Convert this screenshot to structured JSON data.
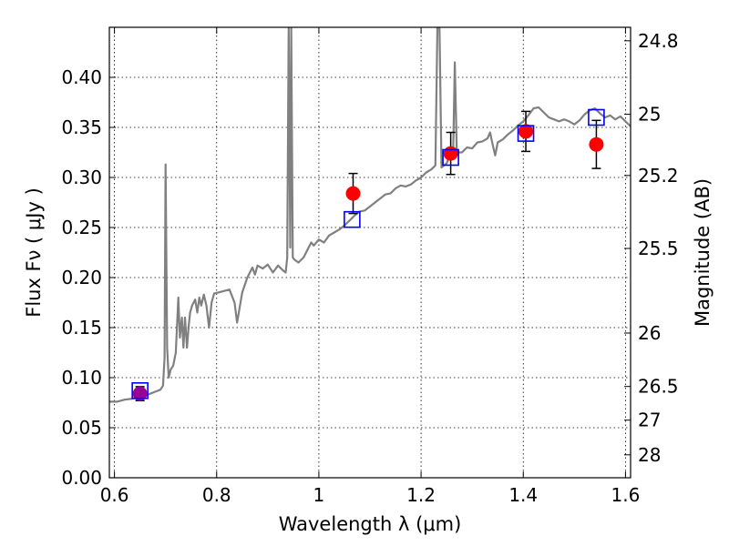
{
  "chart_data": {
    "type": "scatter",
    "xlabel": "Wavelength  λ (μm)",
    "ylabel": "Flux  Fν  ( μJy )",
    "y2label": "Magnitude (AB)",
    "xlim": [
      0.59,
      1.61
    ],
    "ylim": [
      0.0,
      0.45
    ],
    "grid": true,
    "x_ticks": [
      {
        "value": 0.6,
        "label": "0.6"
      },
      {
        "value": 0.8,
        "label": "0.8"
      },
      {
        "value": 1.0,
        "label": "1"
      },
      {
        "value": 1.2,
        "label": "1.2"
      },
      {
        "value": 1.4,
        "label": "1.4"
      },
      {
        "value": 1.6,
        "label": "1.6"
      }
    ],
    "y_ticks": [
      {
        "value": 0.0,
        "label": "0.00"
      },
      {
        "value": 0.05,
        "label": "0.05"
      },
      {
        "value": 0.1,
        "label": "0.10"
      },
      {
        "value": 0.15,
        "label": "0.15"
      },
      {
        "value": 0.2,
        "label": "0.20"
      },
      {
        "value": 0.25,
        "label": "0.25"
      },
      {
        "value": 0.3,
        "label": "0.30"
      },
      {
        "value": 0.35,
        "label": "0.35"
      },
      {
        "value": 0.4,
        "label": "0.40"
      }
    ],
    "y2_ticks": [
      {
        "value": 24.8,
        "label": "24.8"
      },
      {
        "value": 25.0,
        "label": "25"
      },
      {
        "value": 25.2,
        "label": "25.2"
      },
      {
        "value": 25.5,
        "label": "25.5"
      },
      {
        "value": 26.0,
        "label": "26"
      },
      {
        "value": 26.5,
        "label": "26.5"
      },
      {
        "value": 27.0,
        "label": "27"
      },
      {
        "value": 28.0,
        "label": "28"
      }
    ],
    "model_spectrum": {
      "color": "#808080",
      "points": [
        [
          0.59,
          0.076
        ],
        [
          0.605,
          0.076
        ],
        [
          0.62,
          0.078
        ],
        [
          0.635,
          0.079
        ],
        [
          0.65,
          0.081
        ],
        [
          0.665,
          0.083
        ],
        [
          0.68,
          0.086
        ],
        [
          0.69,
          0.088
        ],
        [
          0.695,
          0.092
        ],
        [
          0.698,
          0.12
        ],
        [
          0.7,
          0.313
        ],
        [
          0.703,
          0.13
        ],
        [
          0.706,
          0.1
        ],
        [
          0.71,
          0.108
        ],
        [
          0.715,
          0.112
        ],
        [
          0.72,
          0.125
        ],
        [
          0.725,
          0.18
        ],
        [
          0.728,
          0.14
        ],
        [
          0.732,
          0.16
        ],
        [
          0.735,
          0.13
        ],
        [
          0.738,
          0.16
        ],
        [
          0.742,
          0.13
        ],
        [
          0.745,
          0.15
        ],
        [
          0.748,
          0.165
        ],
        [
          0.752,
          0.172
        ],
        [
          0.758,
          0.178
        ],
        [
          0.762,
          0.165
        ],
        [
          0.766,
          0.18
        ],
        [
          0.77,
          0.172
        ],
        [
          0.775,
          0.183
        ],
        [
          0.78,
          0.172
        ],
        [
          0.785,
          0.15
        ],
        [
          0.79,
          0.175
        ],
        [
          0.795,
          0.184
        ],
        [
          0.81,
          0.186
        ],
        [
          0.825,
          0.188
        ],
        [
          0.835,
          0.175
        ],
        [
          0.84,
          0.155
        ],
        [
          0.845,
          0.17
        ],
        [
          0.85,
          0.185
        ],
        [
          0.86,
          0.2
        ],
        [
          0.87,
          0.21
        ],
        [
          0.875,
          0.203
        ],
        [
          0.88,
          0.212
        ],
        [
          0.89,
          0.209
        ],
        [
          0.9,
          0.213
        ],
        [
          0.91,
          0.205
        ],
        [
          0.92,
          0.212
        ],
        [
          0.93,
          0.207
        ],
        [
          0.935,
          0.205
        ],
        [
          0.938,
          0.22
        ],
        [
          0.941,
          0.45
        ],
        [
          0.944,
          0.23
        ],
        [
          0.946,
          0.45
        ],
        [
          0.949,
          0.22
        ],
        [
          0.952,
          0.218
        ],
        [
          0.96,
          0.215
        ],
        [
          0.97,
          0.22
        ],
        [
          0.975,
          0.225
        ],
        [
          0.985,
          0.235
        ],
        [
          0.99,
          0.232
        ],
        [
          1.0,
          0.238
        ],
        [
          1.01,
          0.235
        ],
        [
          1.02,
          0.242
        ],
        [
          1.03,
          0.245
        ],
        [
          1.04,
          0.248
        ],
        [
          1.05,
          0.252
        ],
        [
          1.06,
          0.257
        ],
        [
          1.07,
          0.262
        ],
        [
          1.08,
          0.266
        ],
        [
          1.09,
          0.267
        ],
        [
          1.1,
          0.271
        ],
        [
          1.11,
          0.275
        ],
        [
          1.12,
          0.279
        ],
        [
          1.13,
          0.283
        ],
        [
          1.14,
          0.284
        ],
        [
          1.15,
          0.289
        ],
        [
          1.16,
          0.292
        ],
        [
          1.17,
          0.291
        ],
        [
          1.18,
          0.293
        ],
        [
          1.19,
          0.297
        ],
        [
          1.2,
          0.3
        ],
        [
          1.21,
          0.305
        ],
        [
          1.22,
          0.308
        ],
        [
          1.228,
          0.312
        ],
        [
          1.232,
          0.45
        ],
        [
          1.236,
          0.45
        ],
        [
          1.24,
          0.31
        ],
        [
          1.245,
          0.312
        ],
        [
          1.25,
          0.314
        ],
        [
          1.255,
          0.32
        ],
        [
          1.26,
          0.322
        ],
        [
          1.263,
          0.33
        ],
        [
          1.266,
          0.415
        ],
        [
          1.27,
          0.325
        ],
        [
          1.28,
          0.325
        ],
        [
          1.29,
          0.33
        ],
        [
          1.3,
          0.329
        ],
        [
          1.31,
          0.335
        ],
        [
          1.32,
          0.336
        ],
        [
          1.33,
          0.339
        ],
        [
          1.335,
          0.345
        ],
        [
          1.34,
          0.333
        ],
        [
          1.345,
          0.322
        ],
        [
          1.35,
          0.335
        ],
        [
          1.36,
          0.338
        ],
        [
          1.37,
          0.343
        ],
        [
          1.38,
          0.347
        ],
        [
          1.39,
          0.352
        ],
        [
          1.4,
          0.356
        ],
        [
          1.41,
          0.362
        ],
        [
          1.42,
          0.369
        ],
        [
          1.43,
          0.37
        ],
        [
          1.44,
          0.365
        ],
        [
          1.45,
          0.36
        ],
        [
          1.46,
          0.358
        ],
        [
          1.47,
          0.356
        ],
        [
          1.48,
          0.358
        ],
        [
          1.49,
          0.356
        ],
        [
          1.5,
          0.353
        ],
        [
          1.51,
          0.357
        ],
        [
          1.52,
          0.363
        ],
        [
          1.53,
          0.367
        ],
        [
          1.54,
          0.369
        ],
        [
          1.55,
          0.364
        ],
        [
          1.56,
          0.36
        ],
        [
          1.57,
          0.362
        ],
        [
          1.58,
          0.358
        ],
        [
          1.59,
          0.361
        ],
        [
          1.6,
          0.356
        ],
        [
          1.61,
          0.351
        ]
      ]
    },
    "model_photometry": {
      "marker": "open square",
      "color": "#0000ff",
      "points": [
        {
          "x": 0.65,
          "y": 0.087
        },
        {
          "x": 1.065,
          "y": 0.258
        },
        {
          "x": 1.258,
          "y": 0.32
        },
        {
          "x": 1.405,
          "y": 0.344
        },
        {
          "x": 1.543,
          "y": 0.36
        }
      ]
    },
    "observed_photometry": {
      "marker": "filled circle",
      "color": "#ff0000",
      "points": [
        {
          "x": 1.067,
          "y": 0.284,
          "err": 0.02
        },
        {
          "x": 1.258,
          "y": 0.324,
          "err": 0.021
        },
        {
          "x": 1.405,
          "y": 0.346,
          "err": 0.02
        },
        {
          "x": 1.543,
          "y": 0.333,
          "err": 0.024
        }
      ]
    },
    "observed_photometry_alt": {
      "marker": "filled circle",
      "color": "#990099",
      "points": [
        {
          "x": 0.65,
          "y": 0.084,
          "err": 0.007
        }
      ]
    }
  }
}
